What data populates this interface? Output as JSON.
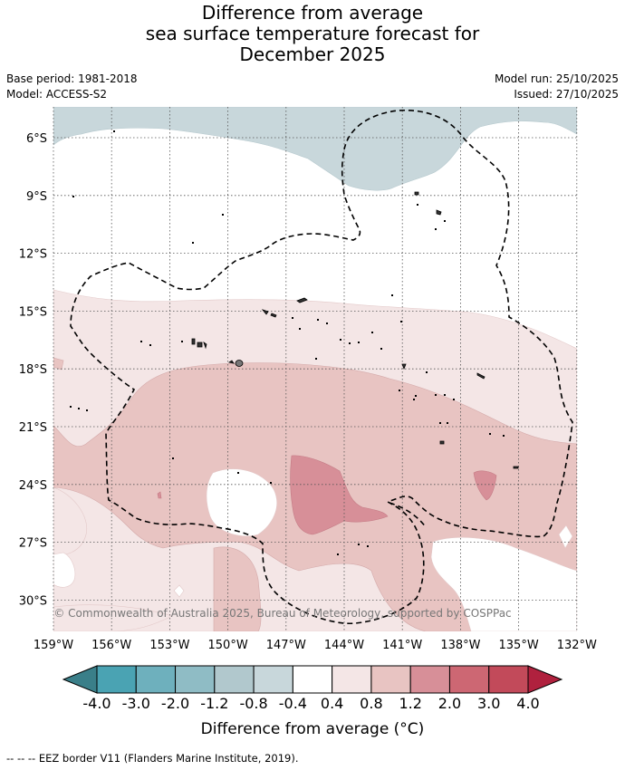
{
  "title": {
    "line1": "Difference from average",
    "line2": "sea surface temperature forecast for",
    "line3": "December 2025"
  },
  "meta": {
    "base_period": "Base period: 1981-2018",
    "model": "Model: ACCESS-S2",
    "model_run": "Model run: 25/10/2025",
    "issued": "Issued: 27/10/2025"
  },
  "map": {
    "lat_labels": [
      "6°S",
      "9°S",
      "12°S",
      "15°S",
      "18°S",
      "21°S",
      "24°S",
      "27°S",
      "30°S"
    ],
    "lon_labels": [
      "159°W",
      "156°W",
      "153°W",
      "150°W",
      "147°W",
      "144°W",
      "141°W",
      "138°W",
      "135°W",
      "132°W"
    ],
    "copyright": "© Commonwealth of Australia 2025, Bureau of Meteorology, supported by COSPPac"
  },
  "colorbar": {
    "ticks": [
      "-4.0",
      "-3.0",
      "-2.0",
      "-1.2",
      "-0.8",
      "-0.4",
      "0.4",
      "0.8",
      "1.2",
      "2.0",
      "3.0",
      "4.0"
    ],
    "colors": {
      "under": "#3a7f89",
      "bins": [
        "#4aa3b3",
        "#6eb0bd",
        "#8fbcc5",
        "#b1c8cd",
        "#c8d7db",
        "#ffffff",
        "#f4e6e6",
        "#e8c4c2",
        "#d78f98",
        "#cd6773",
        "#c24a5a"
      ],
      "over": "#b0213e"
    },
    "label": "Difference from average (°C)"
  },
  "footnote": "--  --  -- EEZ border V11 (Flanders Marine Institute, 2019)."
}
